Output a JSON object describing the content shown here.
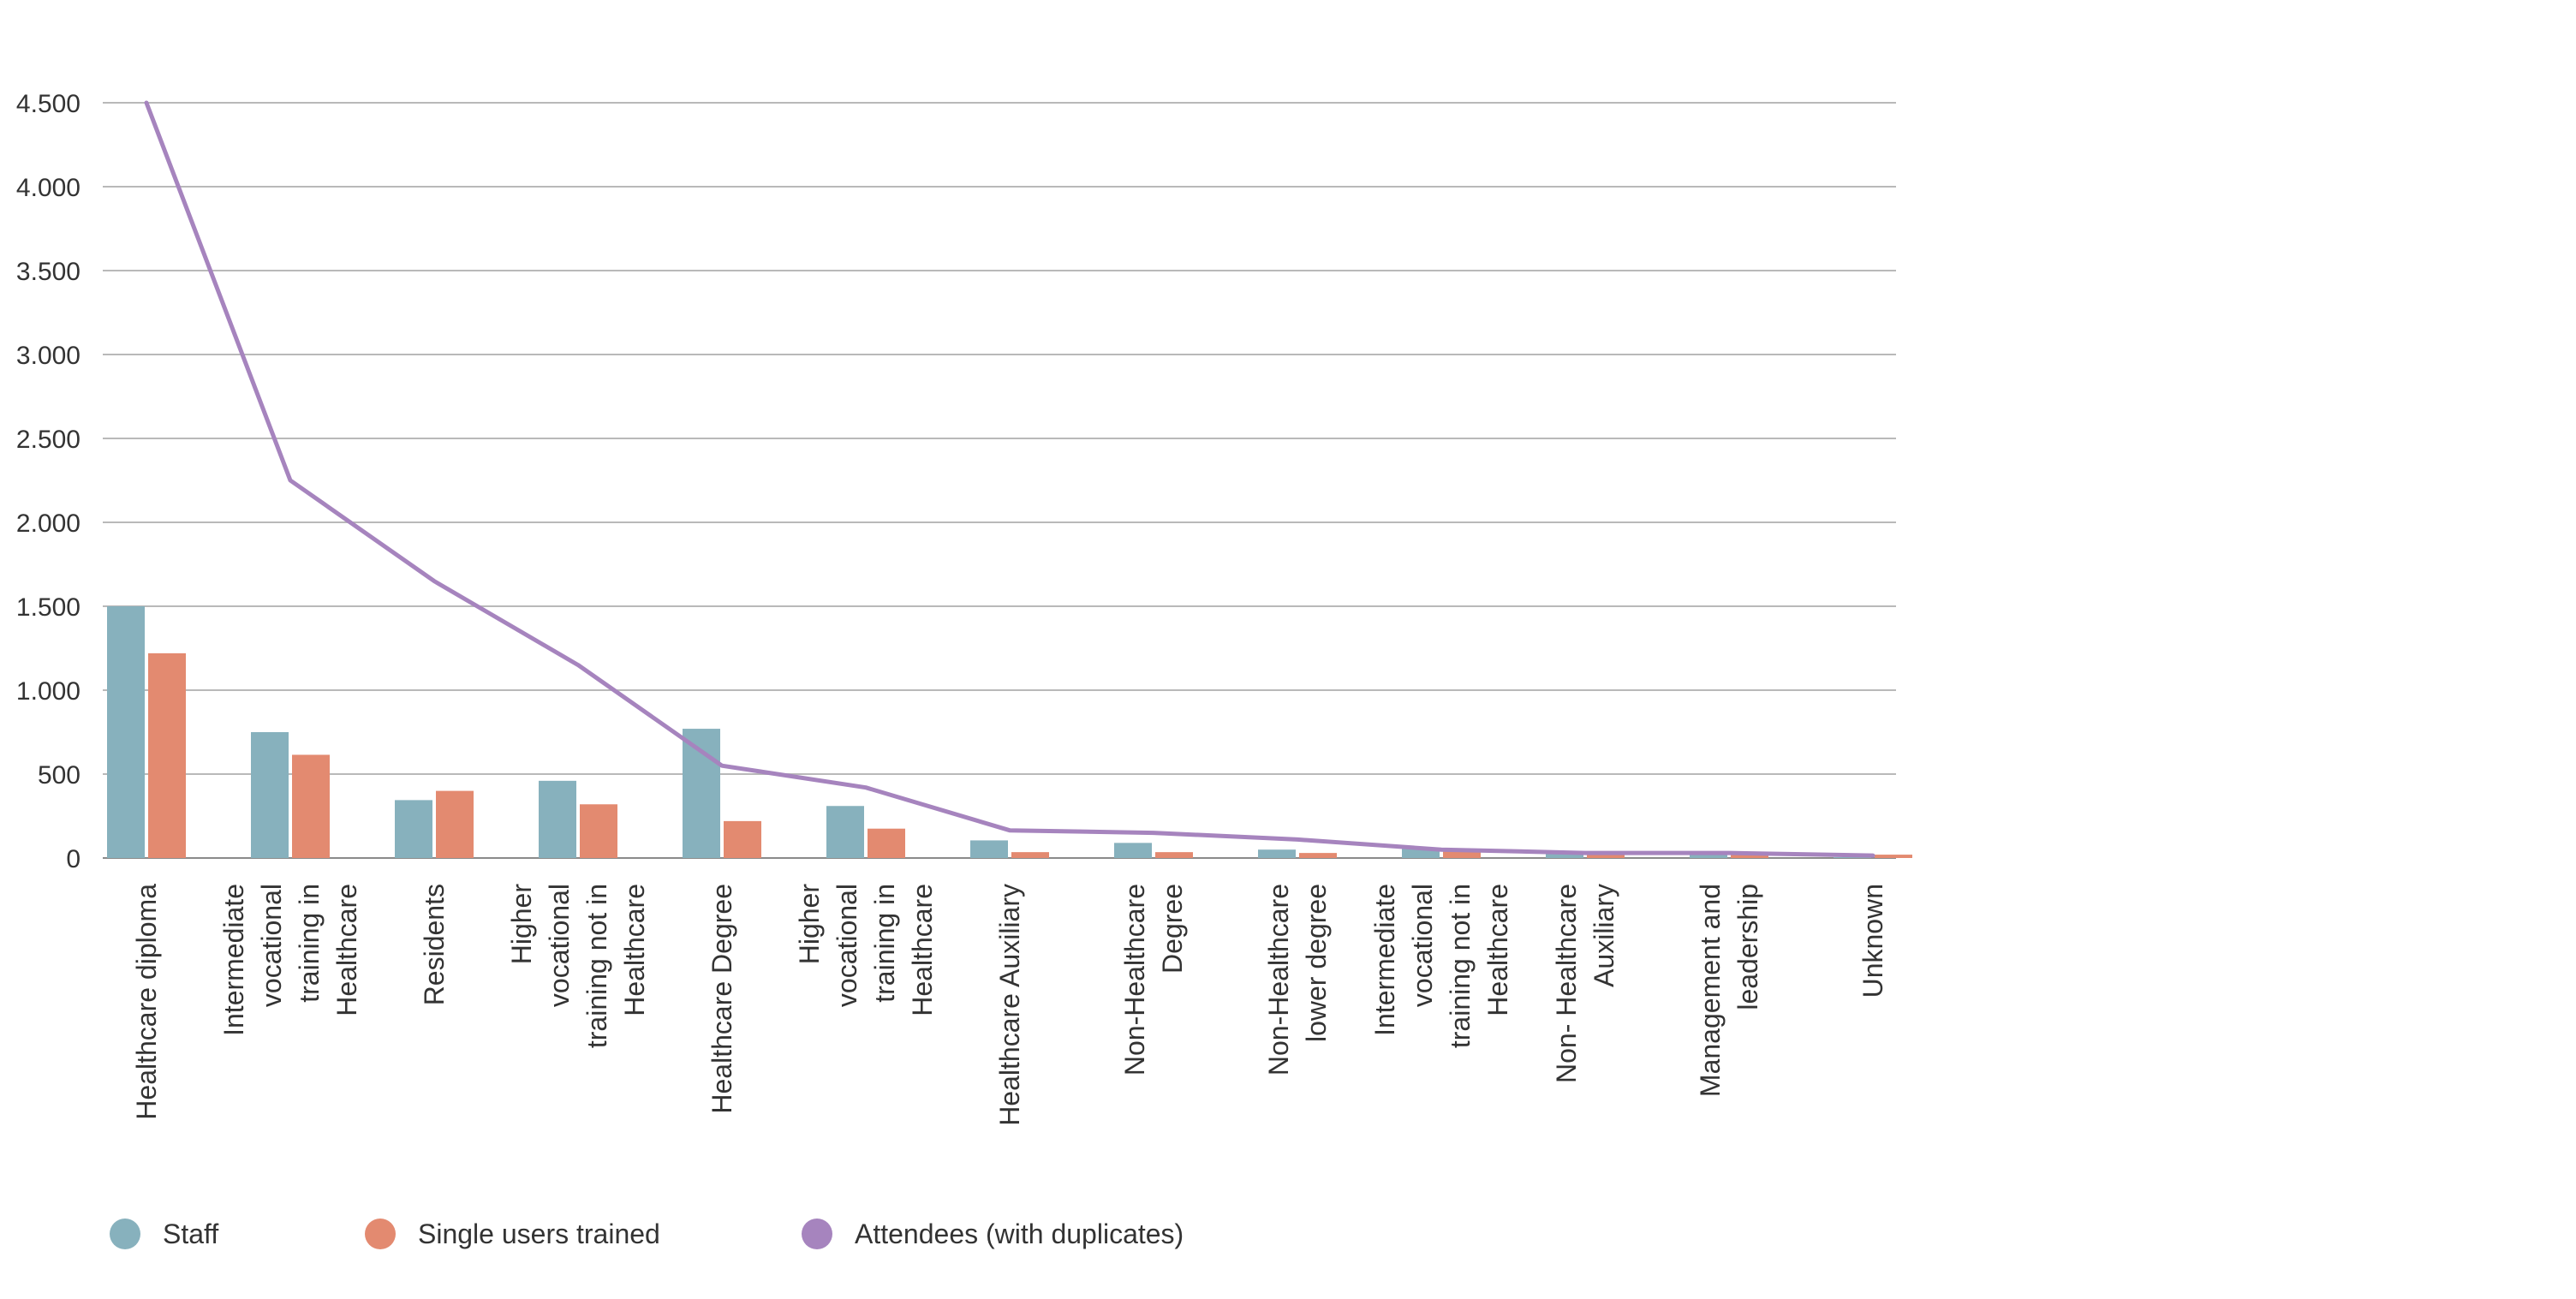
{
  "chart_data": {
    "type": "bar",
    "title": "",
    "xlabel": "",
    "ylabel": "",
    "ylim": [
      0,
      4500
    ],
    "yticks": [
      {
        "value": 0,
        "label": "0"
      },
      {
        "value": 500,
        "label": "500"
      },
      {
        "value": 1000,
        "label": "1.000"
      },
      {
        "value": 1500,
        "label": "1.500"
      },
      {
        "value": 2000,
        "label": "2.000"
      },
      {
        "value": 2500,
        "label": "2.500"
      },
      {
        "value": 3000,
        "label": "3.000"
      },
      {
        "value": 3500,
        "label": "3.500"
      },
      {
        "value": 4000,
        "label": "4.000"
      },
      {
        "value": 4500,
        "label": "4.500"
      }
    ],
    "grid": true,
    "categories": [
      [
        "Healthcare diploma"
      ],
      [
        "Intermediate",
        "vocational",
        "training in",
        "Healthcare"
      ],
      [
        "Residents"
      ],
      [
        "Higher",
        "vocational",
        "training not in",
        "Healthcare"
      ],
      [
        "Healthcare Degree"
      ],
      [
        "Higher",
        "vocational",
        "training in",
        "Healthcare"
      ],
      [
        "Healthcare Auxiliary"
      ],
      [
        "Non-Healthcare",
        "Degree"
      ],
      [
        "Non-Healthcare",
        "lower degree"
      ],
      [
        "Intermediate",
        "vocational",
        "training not in",
        "Healthcare"
      ],
      [
        "Non- Healthcare",
        "Auxiliary"
      ],
      [
        "Management and",
        "leadership"
      ],
      [
        "Unknown"
      ]
    ],
    "series": [
      {
        "name": "Staff",
        "kind": "bar",
        "color": "#87B1BD",
        "values": [
          1500,
          750,
          345,
          460,
          770,
          310,
          105,
          90,
          50,
          60,
          30,
          25,
          5
        ]
      },
      {
        "name": "Single users trained",
        "kind": "bar",
        "color": "#E38A70",
        "values": [
          1220,
          615,
          400,
          320,
          220,
          175,
          35,
          35,
          30,
          40,
          20,
          25,
          20
        ]
      },
      {
        "name": "Attendees (with duplicates)",
        "kind": "line",
        "color": "#A684BE",
        "values": [
          4500,
          2250,
          1650,
          1150,
          550,
          420,
          165,
          150,
          110,
          50,
          30,
          30,
          15
        ]
      }
    ],
    "legend_position": "bottom-left"
  }
}
